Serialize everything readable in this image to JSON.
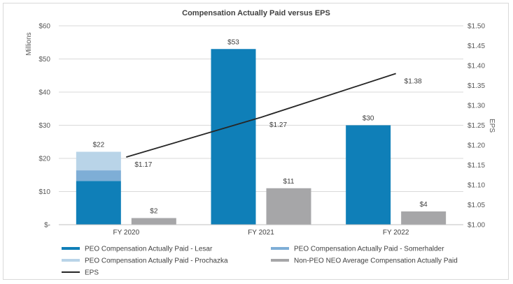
{
  "chart_data": {
    "type": "bar",
    "title": "Compensation Actually Paid versus EPS",
    "categories": [
      "FY 2020",
      "FY 2021",
      "FY 2022"
    ],
    "y_left": {
      "label": "Millions",
      "ylim": [
        0,
        60
      ],
      "ticks": [
        0,
        10,
        20,
        30,
        40,
        50,
        60
      ],
      "tick_labels": [
        "$-",
        "$10",
        "$20",
        "$30",
        "$40",
        "$50",
        "$60"
      ]
    },
    "y_right": {
      "label": "EPS",
      "ylim": [
        1.0,
        1.5
      ],
      "ticks": [
        1.0,
        1.05,
        1.1,
        1.15,
        1.2,
        1.25,
        1.3,
        1.35,
        1.4,
        1.45,
        1.5
      ],
      "tick_labels": [
        "$1.00",
        "$1.05",
        "$1.10",
        "$1.15",
        "$1.20",
        "$1.25",
        "$1.30",
        "$1.35",
        "$1.40",
        "$1.45",
        "$1.50"
      ]
    },
    "stacked_series": [
      {
        "name": "PEO Compensation Actually Paid - Lesar",
        "color": "#0f7fb8",
        "values": [
          13.2,
          53,
          30
        ]
      },
      {
        "name": "PEO Compensation Actually Paid - Somerhalder",
        "color": "#7eaed6",
        "values": [
          3.2,
          0,
          0
        ]
      },
      {
        "name": "PEO Compensation Actually Paid - Prochazka",
        "color": "#b9d4e8",
        "values": [
          5.6,
          0,
          0
        ]
      }
    ],
    "stacked_totals": [
      "$22",
      "$53",
      "$30"
    ],
    "bar_series": {
      "name": "Non-PEO NEO Average Compensation Actually Paid",
      "color": "#a6a6a8",
      "values": [
        2,
        11,
        4
      ],
      "labels": [
        "$2",
        "$11",
        "$4"
      ]
    },
    "line_series": {
      "name": "EPS",
      "color": "#262626",
      "values": [
        1.17,
        1.27,
        1.38
      ],
      "labels": [
        "$1.17",
        "$1.27",
        "$1.38"
      ]
    },
    "legend": [
      {
        "name": "PEO Compensation Actually Paid - Lesar",
        "color": "#0f7fb8",
        "kind": "bar"
      },
      {
        "name": "PEO Compensation Actually Paid - Somerhalder",
        "color": "#7eaed6",
        "kind": "bar"
      },
      {
        "name": "PEO Compensation Actually Paid - Prochazka",
        "color": "#b9d4e8",
        "kind": "bar"
      },
      {
        "name": "Non-PEO NEO Average Compensation Actually Paid",
        "color": "#a6a6a8",
        "kind": "bar"
      },
      {
        "name": "EPS",
        "color": "#262626",
        "kind": "line"
      }
    ],
    "legend_position": "bottom",
    "grid": true,
    "grid_color": "#d9d9d9"
  }
}
